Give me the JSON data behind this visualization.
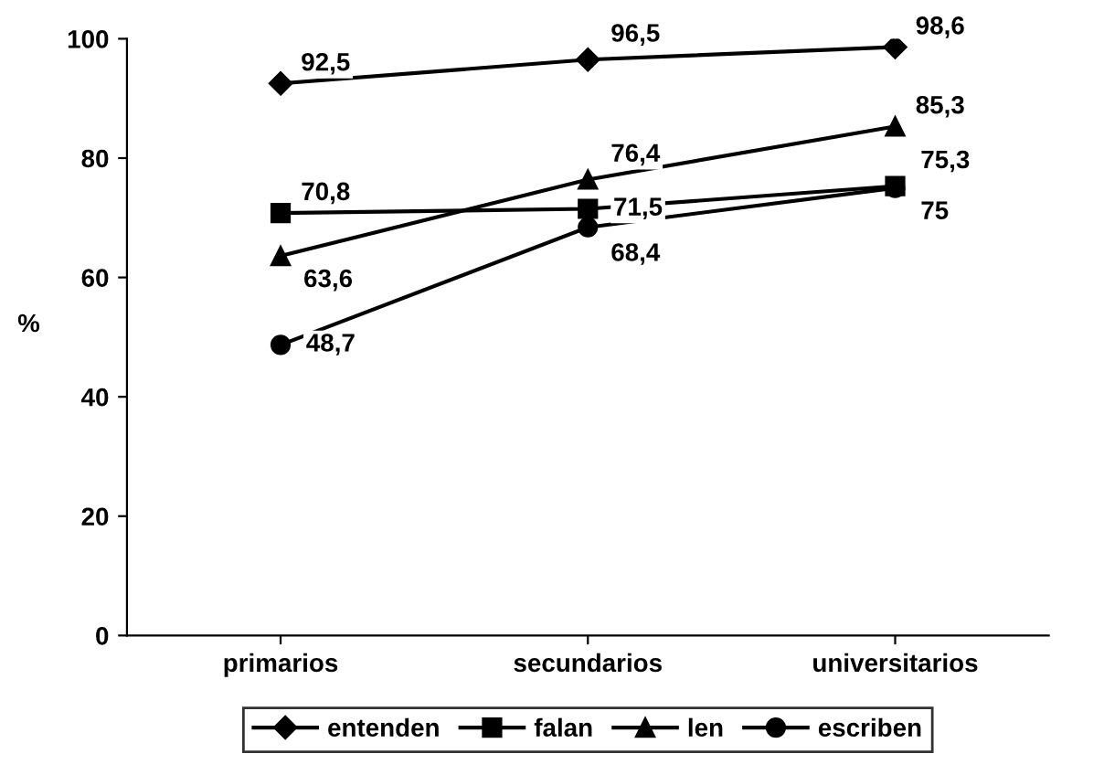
{
  "chart_data": {
    "type": "line",
    "ylabel": "%",
    "categories": [
      "primarios",
      "secundarios",
      "universitarios"
    ],
    "series": [
      {
        "name": "entenden",
        "color": "#000000",
        "marker": "diamond",
        "values": [
          92.5,
          96.5,
          98.6
        ],
        "value_labels": [
          "92,5",
          "96,5",
          "98,6"
        ]
      },
      {
        "name": "falan",
        "color": "#000000",
        "marker": "square",
        "values": [
          70.8,
          71.5,
          75.3
        ],
        "value_labels": [
          "70,8",
          "71,5",
          "75,3"
        ]
      },
      {
        "name": "len",
        "color": "#000000",
        "marker": "triangle",
        "values": [
          63.6,
          76.4,
          85.3
        ],
        "value_labels": [
          "63,6",
          "76,4",
          "85,3"
        ]
      },
      {
        "name": "escriben",
        "color": "#000000",
        "marker": "circle",
        "values": [
          48.7,
          68.4,
          75
        ],
        "value_labels": [
          "48,7",
          "68,4",
          "75"
        ]
      }
    ],
    "ylim": [
      0,
      100
    ],
    "yticks": [
      0,
      20,
      40,
      60,
      80,
      100
    ],
    "grid": false,
    "legend": "bottom",
    "line_style": "solid"
  }
}
